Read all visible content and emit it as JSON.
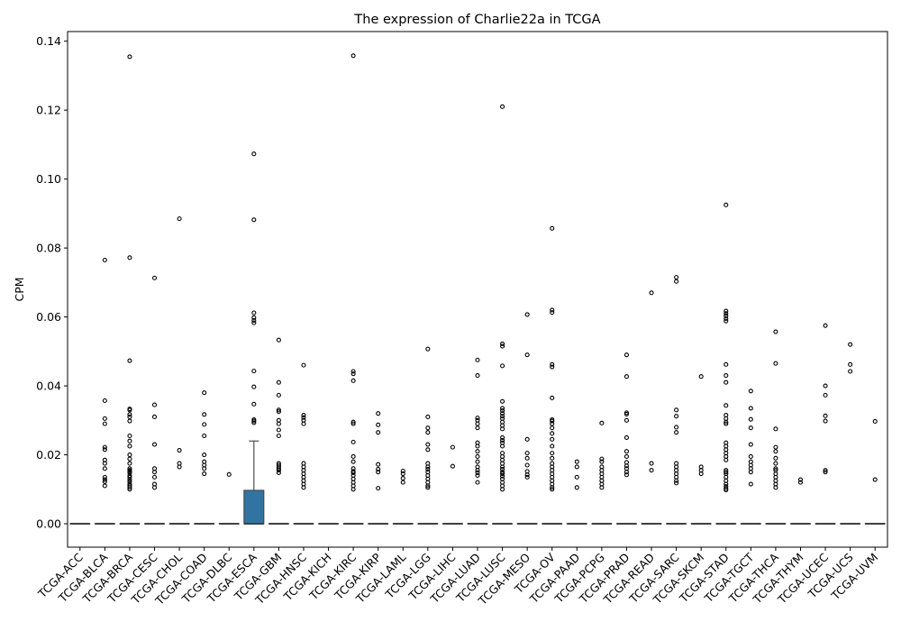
{
  "chart_data": {
    "type": "box",
    "title": "The expression of Charlie22a in TCGA",
    "xlabel": "",
    "ylabel": "CPM",
    "ylim": [
      -0.0068,
      0.1428
    ],
    "yticks": [
      0.0,
      0.02,
      0.04,
      0.06,
      0.08,
      0.1,
      0.12,
      0.14
    ],
    "ytick_labels": [
      "0.00",
      "0.02",
      "0.04",
      "0.06",
      "0.08",
      "0.10",
      "0.12",
      "0.14"
    ],
    "grid": false,
    "box_color": "#3274a1",
    "categories": [
      "TCGA-ACC",
      "TCGA-BLCA",
      "TCGA-BRCA",
      "TCGA-CESC",
      "TCGA-CHOL",
      "TCGA-COAD",
      "TCGA-DLBC",
      "TCGA-ESCA",
      "TCGA-GBM",
      "TCGA-HNSC",
      "TCGA-KICH",
      "TCGA-KIRC",
      "TCGA-KIRP",
      "TCGA-LAML",
      "TCGA-LGG",
      "TCGA-LIHC",
      "TCGA-LUAD",
      "TCGA-LUSC",
      "TCGA-MESO",
      "TCGA-OV",
      "TCGA-PAAD",
      "TCGA-PCPG",
      "TCGA-PRAD",
      "TCGA-READ",
      "TCGA-SARC",
      "TCGA-SKCM",
      "TCGA-STAD",
      "TCGA-TGCT",
      "TCGA-THCA",
      "TCGA-THYM",
      "TCGA-UCEC",
      "TCGA-UCS",
      "TCGA-UVM"
    ],
    "boxes": [
      {
        "q1": 0,
        "median": 0,
        "q3": 0,
        "whisker_low": 0,
        "whisker_high": 0,
        "outliers": []
      },
      {
        "q1": 0,
        "median": 0,
        "q3": 0,
        "whisker_low": 0,
        "whisker_high": 0,
        "outliers": [
          0.0765,
          0.0357,
          0.0305,
          0.029,
          0.0222,
          0.0215,
          0.0185,
          0.0175,
          0.016,
          0.0135,
          0.0128,
          0.0122,
          0.011
        ]
      },
      {
        "q1": 0,
        "median": 0,
        "q3": 0,
        "whisker_low": 0,
        "whisker_high": 0,
        "outliers": [
          0.1355,
          0.0772,
          0.0473,
          0.0333,
          0.033,
          0.0317,
          0.031,
          0.0298,
          0.0255,
          0.024,
          0.0225,
          0.02,
          0.0188,
          0.0175,
          0.016,
          0.0155,
          0.0152,
          0.0148,
          0.014,
          0.0135,
          0.0128,
          0.0122,
          0.0115,
          0.011,
          0.0105,
          0.01
        ]
      },
      {
        "q1": 0,
        "median": 0,
        "q3": 0,
        "whisker_low": 0,
        "whisker_high": 0,
        "outliers": [
          0.0713,
          0.0345,
          0.031,
          0.023,
          0.016,
          0.015,
          0.0135,
          0.0115,
          0.0105
        ]
      },
      {
        "q1": 0,
        "median": 0,
        "q3": 0,
        "whisker_low": 0,
        "whisker_high": 0,
        "outliers": [
          0.0885,
          0.0213,
          0.0175,
          0.0165
        ]
      },
      {
        "q1": 0,
        "median": 0,
        "q3": 0,
        "whisker_low": 0,
        "whisker_high": 0,
        "outliers": [
          0.038,
          0.0317,
          0.0288,
          0.0255,
          0.02,
          0.018,
          0.017,
          0.016,
          0.0145
        ]
      },
      {
        "q1": 0,
        "median": 0,
        "q3": 0,
        "whisker_low": 0,
        "whisker_high": 0,
        "outliers": [
          0.0143
        ]
      },
      {
        "q1": 0,
        "median": 0,
        "q3": 0.0097,
        "whisker_low": 0,
        "whisker_high": 0.024,
        "outliers": [
          0.1073,
          0.0882,
          0.0612,
          0.0598,
          0.059,
          0.0583,
          0.0443,
          0.0397,
          0.0347,
          0.0302,
          0.0298,
          0.0293
        ]
      },
      {
        "q1": 0,
        "median": 0,
        "q3": 0,
        "whisker_low": 0,
        "whisker_high": 0,
        "outliers": [
          0.0533,
          0.041,
          0.0373,
          0.033,
          0.0325,
          0.03,
          0.029,
          0.0272,
          0.0255,
          0.0175,
          0.017,
          0.0165,
          0.016,
          0.0155,
          0.0148
        ]
      },
      {
        "q1": 0,
        "median": 0,
        "q3": 0,
        "whisker_low": 0,
        "whisker_high": 0,
        "outliers": [
          0.046,
          0.0315,
          0.0308,
          0.03,
          0.029,
          0.0175,
          0.0165,
          0.0155,
          0.0145,
          0.0135,
          0.0125,
          0.0115,
          0.0105
        ]
      },
      {
        "q1": 0,
        "median": 0,
        "q3": 0,
        "whisker_low": 0,
        "whisker_high": 0,
        "outliers": []
      },
      {
        "q1": 0,
        "median": 0,
        "q3": 0,
        "whisker_low": 0,
        "whisker_high": 0,
        "outliers": [
          0.1358,
          0.0442,
          0.0435,
          0.0415,
          0.0295,
          0.029,
          0.0237,
          0.0195,
          0.018,
          0.016,
          0.0152,
          0.0148,
          0.014,
          0.013,
          0.012,
          0.011,
          0.01
        ]
      },
      {
        "q1": 0,
        "median": 0,
        "q3": 0,
        "whisker_low": 0,
        "whisker_high": 0,
        "outliers": [
          0.032,
          0.0287,
          0.0265,
          0.0172,
          0.0158,
          0.015,
          0.0103
        ]
      },
      {
        "q1": 0,
        "median": 0,
        "q3": 0,
        "whisker_low": 0,
        "whisker_high": 0,
        "outliers": [
          0.0153,
          0.0145,
          0.0132,
          0.012
        ]
      },
      {
        "q1": 0,
        "median": 0,
        "q3": 0,
        "whisker_low": 0,
        "whisker_high": 0,
        "outliers": [
          0.0507,
          0.031,
          0.0278,
          0.0265,
          0.023,
          0.0215,
          0.0175,
          0.0165,
          0.0158,
          0.015,
          0.014,
          0.013,
          0.012,
          0.011,
          0.0105
        ]
      },
      {
        "q1": 0,
        "median": 0,
        "q3": 0,
        "whisker_low": 0,
        "whisker_high": 0,
        "outliers": [
          0.0222,
          0.0167
        ]
      },
      {
        "q1": 0,
        "median": 0,
        "q3": 0,
        "whisker_low": 0,
        "whisker_high": 0,
        "outliers": [
          0.0475,
          0.043,
          0.0307,
          0.03,
          0.029,
          0.0278,
          0.0235,
          0.0225,
          0.021,
          0.0195,
          0.018,
          0.0165,
          0.0155,
          0.0148,
          0.014,
          0.012
        ]
      },
      {
        "q1": 0,
        "median": 0,
        "q3": 0,
        "whisker_low": 0,
        "whisker_high": 0,
        "outliers": [
          0.121,
          0.0522,
          0.0515,
          0.0458,
          0.0355,
          0.0335,
          0.0328,
          0.032,
          0.0312,
          0.0305,
          0.0295,
          0.0285,
          0.0275,
          0.025,
          0.0242,
          0.0235,
          0.0225,
          0.0205,
          0.0195,
          0.0185,
          0.0175,
          0.0165,
          0.0158,
          0.015,
          0.0145,
          0.0138,
          0.013,
          0.012,
          0.011,
          0.01
        ]
      },
      {
        "q1": 0,
        "median": 0,
        "q3": 0,
        "whisker_low": 0,
        "whisker_high": 0,
        "outliers": [
          0.0607,
          0.049,
          0.0245,
          0.0205,
          0.019,
          0.017,
          0.0152,
          0.0142,
          0.0135
        ]
      },
      {
        "q1": 0,
        "median": 0,
        "q3": 0,
        "whisker_low": 0,
        "whisker_high": 0,
        "outliers": [
          0.0857,
          0.062,
          0.0613,
          0.0462,
          0.0455,
          0.0365,
          0.0302,
          0.0298,
          0.029,
          0.0278,
          0.0262,
          0.0245,
          0.0225,
          0.0205,
          0.019,
          0.0175,
          0.0165,
          0.0155,
          0.0145,
          0.0135,
          0.0125,
          0.0115,
          0.0105,
          0.01
        ]
      },
      {
        "q1": 0,
        "median": 0,
        "q3": 0,
        "whisker_low": 0,
        "whisker_high": 0,
        "outliers": [
          0.018,
          0.0165,
          0.0135,
          0.0105
        ]
      },
      {
        "q1": 0,
        "median": 0,
        "q3": 0,
        "whisker_low": 0,
        "whisker_high": 0,
        "outliers": [
          0.0292,
          0.0188,
          0.018,
          0.0165,
          0.0155,
          0.0145,
          0.0135,
          0.0125,
          0.0115,
          0.0105
        ]
      },
      {
        "q1": 0,
        "median": 0,
        "q3": 0,
        "whisker_low": 0,
        "whisker_high": 0,
        "outliers": [
          0.049,
          0.0427,
          0.0322,
          0.0318,
          0.03,
          0.025,
          0.021,
          0.0195,
          0.0178,
          0.0168,
          0.016,
          0.015,
          0.0142
        ]
      },
      {
        "q1": 0,
        "median": 0,
        "q3": 0,
        "whisker_low": 0,
        "whisker_high": 0,
        "outliers": [
          0.067,
          0.0175,
          0.0155
        ]
      },
      {
        "q1": 0,
        "median": 0,
        "q3": 0,
        "whisker_low": 0,
        "whisker_high": 0,
        "outliers": [
          0.0715,
          0.0703,
          0.033,
          0.0312,
          0.028,
          0.0265,
          0.0175,
          0.0165,
          0.0155,
          0.0145,
          0.0135,
          0.0125,
          0.0118
        ]
      },
      {
        "q1": 0,
        "median": 0,
        "q3": 0,
        "whisker_low": 0,
        "whisker_high": 0,
        "outliers": [
          0.0427,
          0.0165,
          0.0155,
          0.0145
        ]
      },
      {
        "q1": 0,
        "median": 0,
        "q3": 0,
        "whisker_low": 0,
        "whisker_high": 0,
        "outliers": [
          0.0925,
          0.0617,
          0.061,
          0.0603,
          0.0595,
          0.0588,
          0.0462,
          0.043,
          0.041,
          0.0343,
          0.0315,
          0.0305,
          0.0295,
          0.029,
          0.0235,
          0.0225,
          0.0215,
          0.0205,
          0.0195,
          0.0185,
          0.0155,
          0.015,
          0.0145,
          0.0135,
          0.0125,
          0.0115,
          0.0108,
          0.0102,
          0.0098
        ]
      },
      {
        "q1": 0,
        "median": 0,
        "q3": 0,
        "whisker_low": 0,
        "whisker_high": 0,
        "outliers": [
          0.0385,
          0.0335,
          0.0303,
          0.0278,
          0.023,
          0.0195,
          0.018,
          0.017,
          0.016,
          0.015,
          0.0115
        ]
      },
      {
        "q1": 0,
        "median": 0,
        "q3": 0,
        "whisker_low": 0,
        "whisker_high": 0,
        "outliers": [
          0.0557,
          0.0465,
          0.0275,
          0.0222,
          0.021,
          0.019,
          0.0175,
          0.016,
          0.0155,
          0.0145,
          0.0135,
          0.0125,
          0.0115,
          0.0105
        ]
      },
      {
        "q1": 0,
        "median": 0,
        "q3": 0,
        "whisker_low": 0,
        "whisker_high": 0,
        "outliers": [
          0.0128,
          0.012
        ]
      },
      {
        "q1": 0,
        "median": 0,
        "q3": 0,
        "whisker_low": 0,
        "whisker_high": 0,
        "outliers": [
          0.0575,
          0.04,
          0.0373,
          0.0313,
          0.0298,
          0.0155,
          0.015
        ]
      },
      {
        "q1": 0,
        "median": 0,
        "q3": 0,
        "whisker_low": 0,
        "whisker_high": 0,
        "outliers": [
          0.052,
          0.0462,
          0.0442
        ]
      },
      {
        "q1": 0,
        "median": 0,
        "q3": 0,
        "whisker_low": 0,
        "whisker_high": 0,
        "outliers": [
          0.0297,
          0.0128
        ]
      }
    ]
  }
}
